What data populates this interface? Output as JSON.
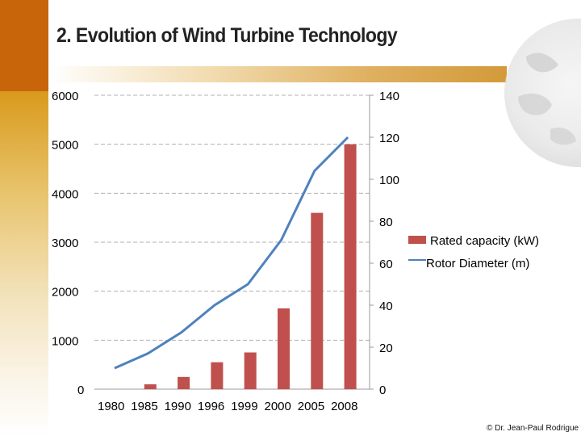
{
  "page": {
    "title": "2. Evolution of Wind Turbine Technology",
    "credit": "© Dr. Jean-Paul Rodrigue"
  },
  "colors": {
    "bar": "#c0504d",
    "line": "#4f81bd",
    "left_band_top": "#c8640a",
    "left_band_bottom": "#d99a1c"
  },
  "chart_data": {
    "type": "bar",
    "title": "",
    "categories": [
      "1980",
      "1985",
      "1990",
      "1996",
      "1999",
      "2000",
      "2005",
      "2008"
    ],
    "series": [
      {
        "name": "Rated capacity (kW)",
        "kind": "bar",
        "axis": "left",
        "values": [
          0,
          100,
          250,
          550,
          750,
          1650,
          3600,
          5000
        ]
      },
      {
        "name": "Rotor Diameter (m)",
        "kind": "line",
        "axis": "right",
        "values": [
          10,
          17,
          27,
          40,
          50,
          71,
          104,
          120
        ]
      }
    ],
    "y_left": {
      "min": 0,
      "max": 6000,
      "ticks": [
        0,
        1000,
        2000,
        3000,
        4000,
        5000,
        6000
      ],
      "gridlines": "dashed"
    },
    "y_right": {
      "min": 0,
      "max": 140,
      "ticks": [
        0,
        20,
        40,
        60,
        80,
        100,
        120,
        140
      ]
    },
    "legend_position": "right"
  }
}
